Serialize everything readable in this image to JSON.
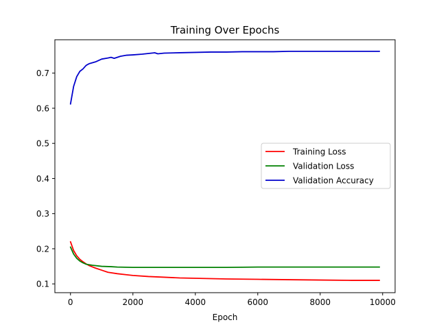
{
  "chart_data": {
    "type": "line",
    "title": "Training Over Epochs",
    "xlabel": "Epoch",
    "ylabel": "",
    "xlim": [
      -500,
      10400
    ],
    "ylim": [
      0.075,
      0.795
    ],
    "xticks": [
      0,
      2000,
      4000,
      6000,
      8000,
      10000
    ],
    "xtick_labels": [
      "0",
      "2000",
      "4000",
      "6000",
      "8000",
      "10000"
    ],
    "yticks": [
      0.1,
      0.2,
      0.3,
      0.4,
      0.5,
      0.6,
      0.7
    ],
    "ytick_labels": [
      "0.1",
      "0.2",
      "0.3",
      "0.4",
      "0.5",
      "0.6",
      "0.7"
    ],
    "grid": false,
    "legend_position": "center-right",
    "series": [
      {
        "name": "Training Loss",
        "color": "#ff0000",
        "x": [
          0,
          100,
          200,
          300,
          400,
          500,
          600,
          800,
          1000,
          1200,
          1500,
          1800,
          2000,
          2500,
          3000,
          3500,
          4000,
          4500,
          5000,
          6000,
          7000,
          8000,
          9000,
          9900
        ],
        "y": [
          0.22,
          0.195,
          0.18,
          0.17,
          0.163,
          0.157,
          0.152,
          0.145,
          0.139,
          0.133,
          0.129,
          0.126,
          0.124,
          0.121,
          0.119,
          0.117,
          0.116,
          0.115,
          0.114,
          0.113,
          0.112,
          0.111,
          0.11,
          0.11
        ]
      },
      {
        "name": "Validation Loss",
        "color": "#008000",
        "x": [
          0,
          100,
          200,
          300,
          400,
          500,
          700,
          1000,
          1300,
          1500,
          2000,
          2500,
          3000,
          3500,
          4000,
          5000,
          6000,
          7000,
          8000,
          9000,
          9900
        ],
        "y": [
          0.205,
          0.185,
          0.173,
          0.165,
          0.16,
          0.156,
          0.153,
          0.15,
          0.149,
          0.148,
          0.147,
          0.147,
          0.147,
          0.147,
          0.147,
          0.147,
          0.148,
          0.148,
          0.148,
          0.148,
          0.148
        ]
      },
      {
        "name": "Validation Accuracy",
        "color": "#0000cc",
        "x": [
          0,
          100,
          200,
          300,
          400,
          500,
          600,
          800,
          1000,
          1200,
          1300,
          1400,
          1600,
          1800,
          2000,
          2300,
          2500,
          2700,
          2800,
          3000,
          3500,
          4000,
          4500,
          5000,
          5500,
          6000,
          6500,
          7000,
          7500,
          8000,
          8500,
          9000,
          9500,
          9900
        ],
        "y": [
          0.612,
          0.662,
          0.69,
          0.705,
          0.712,
          0.722,
          0.727,
          0.732,
          0.74,
          0.743,
          0.745,
          0.742,
          0.748,
          0.751,
          0.752,
          0.754,
          0.756,
          0.758,
          0.755,
          0.757,
          0.758,
          0.759,
          0.76,
          0.76,
          0.761,
          0.761,
          0.761,
          0.762,
          0.762,
          0.762,
          0.762,
          0.762,
          0.762,
          0.762
        ]
      }
    ]
  }
}
